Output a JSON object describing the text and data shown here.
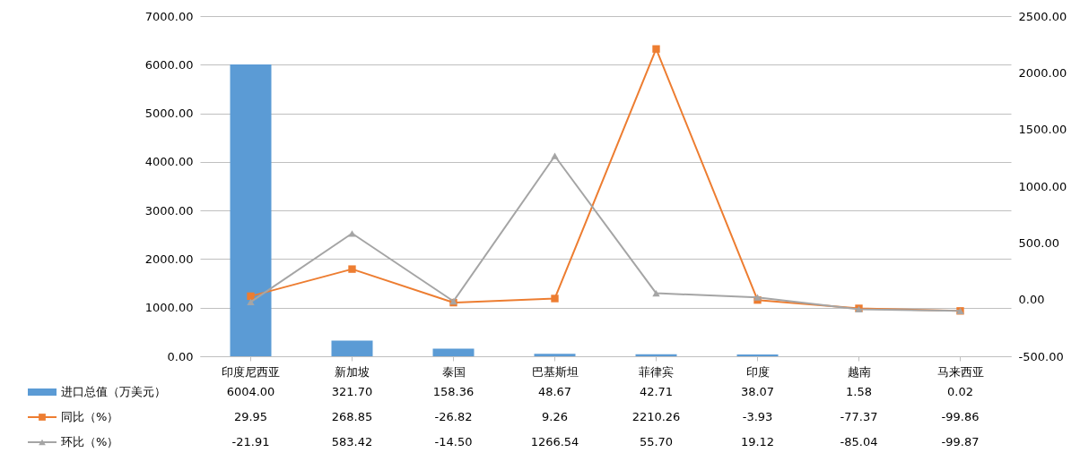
{
  "chart_data": {
    "type": "bar",
    "categories": [
      "印度尼西亚",
      "新加坡",
      "泰国",
      "巴基斯坦",
      "菲律宾",
      "印度",
      "越南",
      "马来西亚"
    ],
    "series": [
      {
        "name": "进口总值（万美元）",
        "color": "#5b9bd5",
        "values": [
          6004.0,
          321.7,
          158.36,
          48.67,
          42.71,
          38.07,
          1.58,
          0.02
        ],
        "value_labels": [
          "6004.00",
          "321.70",
          "158.36",
          "48.67",
          "42.71",
          "38.07",
          "1.58",
          "0.02"
        ]
      },
      {
        "name": "同比（%）",
        "type": "line",
        "axis": "y2",
        "color": "#ed7d31",
        "marker": "square",
        "values": [
          29.95,
          268.85,
          -26.82,
          9.26,
          2210.26,
          -3.93,
          -77.37,
          -99.86
        ],
        "value_labels": [
          "29.95",
          "268.85",
          "-26.82",
          "9.26",
          "2210.26",
          "-3.93",
          "-77.37",
          "-99.86"
        ]
      },
      {
        "name": "环比（%）",
        "type": "line",
        "axis": "y2",
        "color": "#a5a5a5",
        "marker": "triangle",
        "values": [
          -21.91,
          583.42,
          -14.5,
          1266.54,
          55.7,
          19.12,
          -85.04,
          -99.87
        ],
        "value_labels": [
          "-21.91",
          "583.42",
          "-14.50",
          "1266.54",
          "55.70",
          "19.12",
          "-85.04",
          "-99.87"
        ]
      }
    ],
    "ylim": [
      0,
      7000
    ],
    "yticks": [
      {
        "value": 0,
        "label": "0.00"
      },
      {
        "value": 1000,
        "label": "1000.00"
      },
      {
        "value": 2000,
        "label": "2000.00"
      },
      {
        "value": 3000,
        "label": "3000.00"
      },
      {
        "value": 4000,
        "label": "4000.00"
      },
      {
        "value": 5000,
        "label": "5000.00"
      },
      {
        "value": 6000,
        "label": "6000.00"
      },
      {
        "value": 7000,
        "label": "7000.00"
      }
    ],
    "y2lim": [
      -500,
      2500
    ],
    "y2ticks": [
      {
        "value": -500,
        "label": "-500.00"
      },
      {
        "value": 0,
        "label": "0.00"
      },
      {
        "value": 500,
        "label": "500.00"
      },
      {
        "value": 1000,
        "label": "1000.00"
      },
      {
        "value": 1500,
        "label": "1500.00"
      },
      {
        "value": 2000,
        "label": "2000.00"
      },
      {
        "value": 2500,
        "label": "2500.00"
      }
    ],
    "grid": "y",
    "legend": "bottom"
  }
}
